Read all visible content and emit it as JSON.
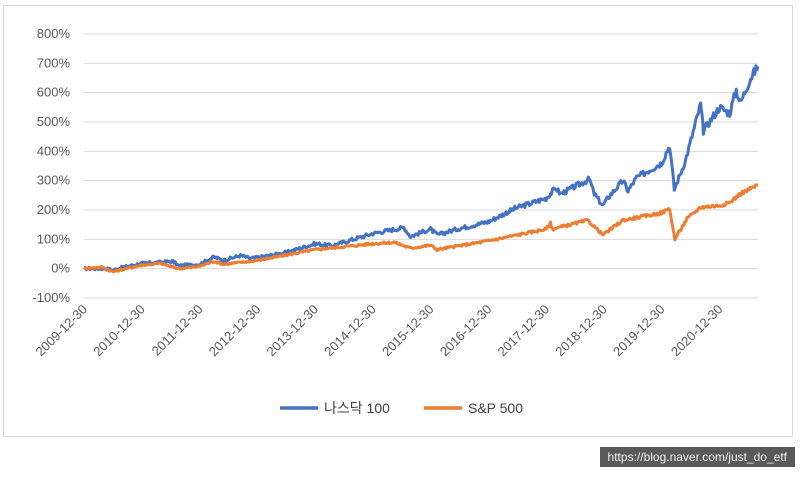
{
  "chart_data": {
    "type": "line",
    "title": "",
    "xlabel": "",
    "ylabel": "",
    "y_tick_labels": [
      "800%",
      "700%",
      "600%",
      "500%",
      "400%",
      "300%",
      "200%",
      "100%",
      "0%",
      "-100%"
    ],
    "x_tick_labels": [
      "2009-12-30",
      "2010-12-30",
      "2011-12-30",
      "2012-12-30",
      "2013-12-30",
      "2014-12-30",
      "2015-12-30",
      "2016-12-30",
      "2017-12-30",
      "2018-12-30",
      "2019-12-30",
      "2020-12-30"
    ],
    "ylim": [
      -100,
      800
    ],
    "xlim": [
      "2009-12-30",
      "2021-08-31"
    ],
    "grid": "horizontal",
    "legend_position": "bottom",
    "series": [
      {
        "name": "나스닥 100",
        "color": "#4472c4",
        "points": [
          [
            "2009-12-30",
            0
          ],
          [
            "2010-05-15",
            0
          ],
          [
            "2010-07-01",
            -5
          ],
          [
            "2010-09-01",
            5
          ],
          [
            "2010-12-30",
            18
          ],
          [
            "2011-04-30",
            22
          ],
          [
            "2011-07-15",
            25
          ],
          [
            "2011-08-20",
            10
          ],
          [
            "2011-12-30",
            15
          ],
          [
            "2012-03-30",
            40
          ],
          [
            "2012-05-30",
            28
          ],
          [
            "2012-09-15",
            45
          ],
          [
            "2012-11-15",
            35
          ],
          [
            "2012-12-30",
            38
          ],
          [
            "2013-06-30",
            55
          ],
          [
            "2013-12-30",
            85
          ],
          [
            "2014-04-15",
            78
          ],
          [
            "2014-12-30",
            120
          ],
          [
            "2015-07-15",
            140
          ],
          [
            "2015-08-25",
            110
          ],
          [
            "2015-12-30",
            135
          ],
          [
            "2016-02-10",
            115
          ],
          [
            "2016-06-15",
            135
          ],
          [
            "2016-12-30",
            160
          ],
          [
            "2017-06-15",
            205
          ],
          [
            "2017-12-30",
            240
          ],
          [
            "2018-03-01",
            275
          ],
          [
            "2018-04-01",
            255
          ],
          [
            "2018-09-30",
            305
          ],
          [
            "2018-10-30",
            255
          ],
          [
            "2018-12-24",
            215
          ],
          [
            "2019-01-30",
            245
          ],
          [
            "2019-04-30",
            300
          ],
          [
            "2019-06-01",
            265
          ],
          [
            "2019-07-25",
            310
          ],
          [
            "2019-12-30",
            360
          ],
          [
            "2020-02-19",
            420
          ],
          [
            "2020-03-20",
            270
          ],
          [
            "2020-05-30",
            370
          ],
          [
            "2020-09-02",
            560
          ],
          [
            "2020-09-20",
            470
          ],
          [
            "2020-12-30",
            550
          ],
          [
            "2021-03-05",
            530
          ],
          [
            "2021-04-15",
            610
          ],
          [
            "2021-05-12",
            565
          ],
          [
            "2021-07-15",
            650
          ],
          [
            "2021-08-31",
            690
          ]
        ]
      },
      {
        "name": "S&P 500",
        "color": "#ed7d31",
        "points": [
          [
            "2009-12-30",
            0
          ],
          [
            "2010-04-20",
            5
          ],
          [
            "2010-07-01",
            -10
          ],
          [
            "2010-12-30",
            12
          ],
          [
            "2011-04-30",
            18
          ],
          [
            "2011-08-20",
            0
          ],
          [
            "2011-12-30",
            8
          ],
          [
            "2012-03-30",
            25
          ],
          [
            "2012-06-01",
            15
          ],
          [
            "2012-12-30",
            28
          ],
          [
            "2013-12-30",
            65
          ],
          [
            "2014-12-30",
            85
          ],
          [
            "2015-05-15",
            90
          ],
          [
            "2015-08-25",
            70
          ],
          [
            "2015-12-30",
            80
          ],
          [
            "2016-02-10",
            65
          ],
          [
            "2016-12-30",
            95
          ],
          [
            "2017-12-30",
            135
          ],
          [
            "2018-01-26",
            155
          ],
          [
            "2018-02-08",
            135
          ],
          [
            "2018-09-20",
            165
          ],
          [
            "2018-12-24",
            115
          ],
          [
            "2019-04-30",
            165
          ],
          [
            "2019-12-30",
            190
          ],
          [
            "2020-02-19",
            205
          ],
          [
            "2020-03-23",
            100
          ],
          [
            "2020-06-08",
            170
          ],
          [
            "2020-09-02",
            210
          ],
          [
            "2020-12-30",
            215
          ],
          [
            "2021-03-05",
            225
          ],
          [
            "2021-05-10",
            255
          ],
          [
            "2021-08-31",
            285
          ]
        ]
      }
    ]
  },
  "watermark": "https://blog.naver.com/just_do_etf"
}
